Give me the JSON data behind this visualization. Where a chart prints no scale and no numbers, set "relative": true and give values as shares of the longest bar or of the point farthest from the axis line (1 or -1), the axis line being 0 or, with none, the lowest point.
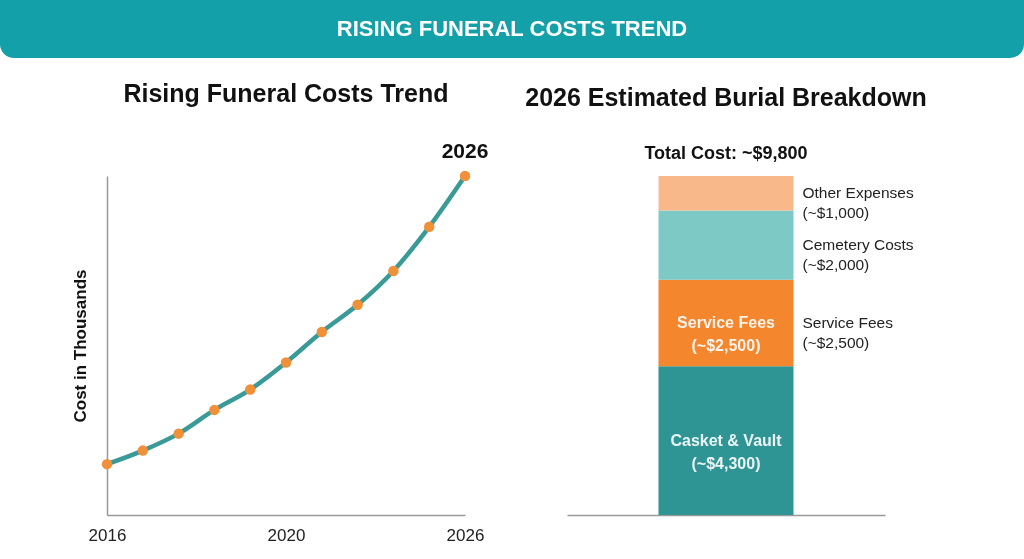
{
  "chart_data": [
    {
      "type": "other",
      "title": "RISING FUNERAL COSTS TREND"
    },
    {
      "type": "line",
      "title": "Rising Funeral Costs Trend",
      "ylabel": "Cost in Thousands",
      "relative": true,
      "marker": "circle",
      "line_style": "solid",
      "categories": [
        "2016",
        null,
        null,
        null,
        null,
        "2020",
        null,
        null,
        null,
        null,
        "2026"
      ],
      "series": [
        {
          "color": "#3a9a97",
          "values": [
            0.15,
            0.19,
            0.24,
            0.31,
            0.37,
            0.45,
            0.54,
            0.62,
            0.72,
            0.85,
            1
          ]
        }
      ],
      "annotations": [
        {
          "text": "2026",
          "x": "2026",
          "y": 1
        }
      ]
    },
    {
      "type": "bar",
      "title": "2026 Estimated Burial Breakdown",
      "stacked": true,
      "categories": [
        null
      ],
      "series": [
        {
          "name": "Casket & Vault",
          "color": "#2e9594",
          "values": [
            4300
          ],
          "value_labels": [
            "(~$4,300)"
          ]
        },
        {
          "name": "Service Fees",
          "color": "#f4862e",
          "values": [
            2500
          ],
          "value_labels": [
            "(~$2,500)"
          ]
        },
        {
          "color": "#7cc9c5",
          "values": [
            2000
          ]
        },
        {
          "color": "#f9b88a",
          "values": [
            1000
          ]
        }
      ],
      "totals": [
        "Total Cost: ~$9,800"
      ],
      "annotations": [
        "Other Expenses (~$1,000)",
        "Cemetery Costs (~$2,000)",
        "Service Fees (~$2,500)"
      ]
    }
  ]
}
